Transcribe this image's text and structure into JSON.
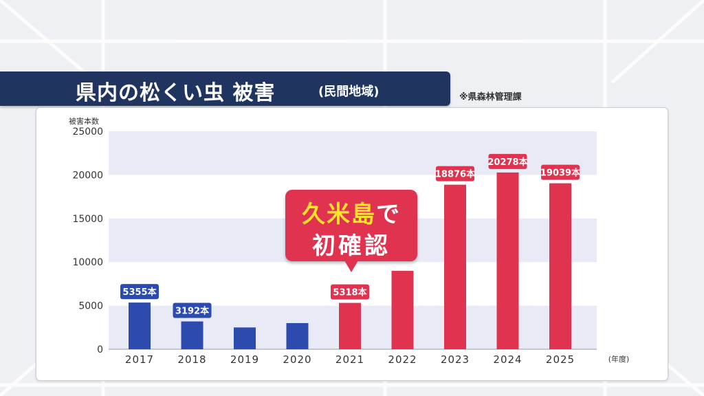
{
  "title": {
    "main": "県内の松くい虫 被害",
    "sub": "(民間地域)"
  },
  "source": "※県森林管理課",
  "callout": {
    "highlight": "久米島",
    "rest": "で",
    "line2": "初確認"
  },
  "colors": {
    "blue": "#2b4cae",
    "red": "#e03350",
    "band": "#e8ebf5",
    "banner": "#1f3560"
  },
  "chart_data": {
    "type": "bar",
    "title": "県内の松くい虫 被害(民間地域)",
    "ylabel": "被害本数",
    "xlabel": "(年度)",
    "ylim": [
      0,
      25000
    ],
    "yticks": [
      "0",
      "5000",
      "10000",
      "15000",
      "20000",
      "25000"
    ],
    "categories": [
      "2017",
      "2018",
      "2019",
      "2020",
      "2021",
      "2022",
      "2023",
      "2024",
      "2025"
    ],
    "values": [
      5355,
      3192,
      2500,
      3000,
      5318,
      9000,
      18876,
      20278,
      19039
    ],
    "labels": [
      "5355本",
      "3192本",
      "",
      "",
      "5318本",
      "",
      "18876本",
      "20278本",
      "19039本"
    ],
    "bar_colors": [
      "blue",
      "blue",
      "blue",
      "blue",
      "red",
      "red",
      "red",
      "red",
      "red"
    ],
    "grid": "alternating horizontal bands",
    "legend": "none"
  }
}
